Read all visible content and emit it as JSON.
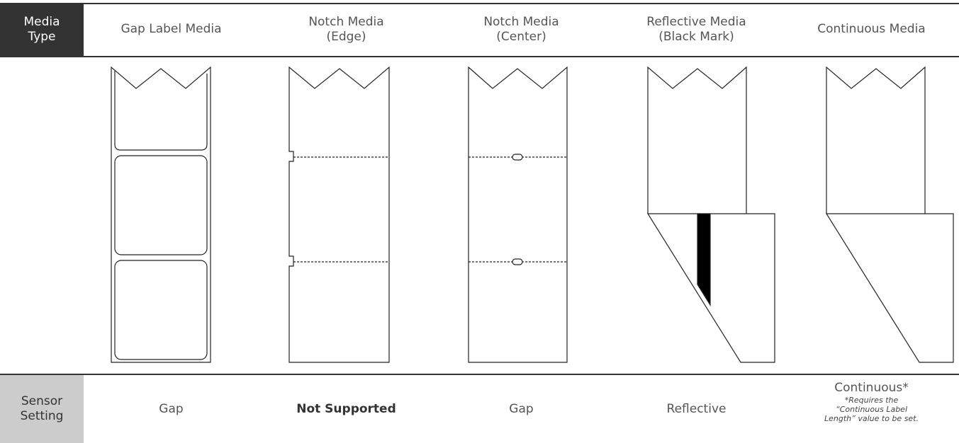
{
  "header": {
    "corner": [
      "Media",
      "Type"
    ],
    "columns": [
      [
        "Gap Label Media"
      ],
      [
        "Notch Media",
        "(Edge)"
      ],
      [
        "Notch Media",
        "(Center)"
      ],
      [
        "Reflective Media",
        "(Black Mark)"
      ],
      [
        "Continuous Media"
      ]
    ]
  },
  "footer": {
    "corner": [
      "Sensor",
      "Setting"
    ],
    "cells": [
      "Gap",
      "Not Supported",
      "Gap",
      "Reflective",
      "Continuous*"
    ],
    "note": [
      "*Requires the",
      "“Continuous Label",
      "Length” value to be set."
    ]
  }
}
